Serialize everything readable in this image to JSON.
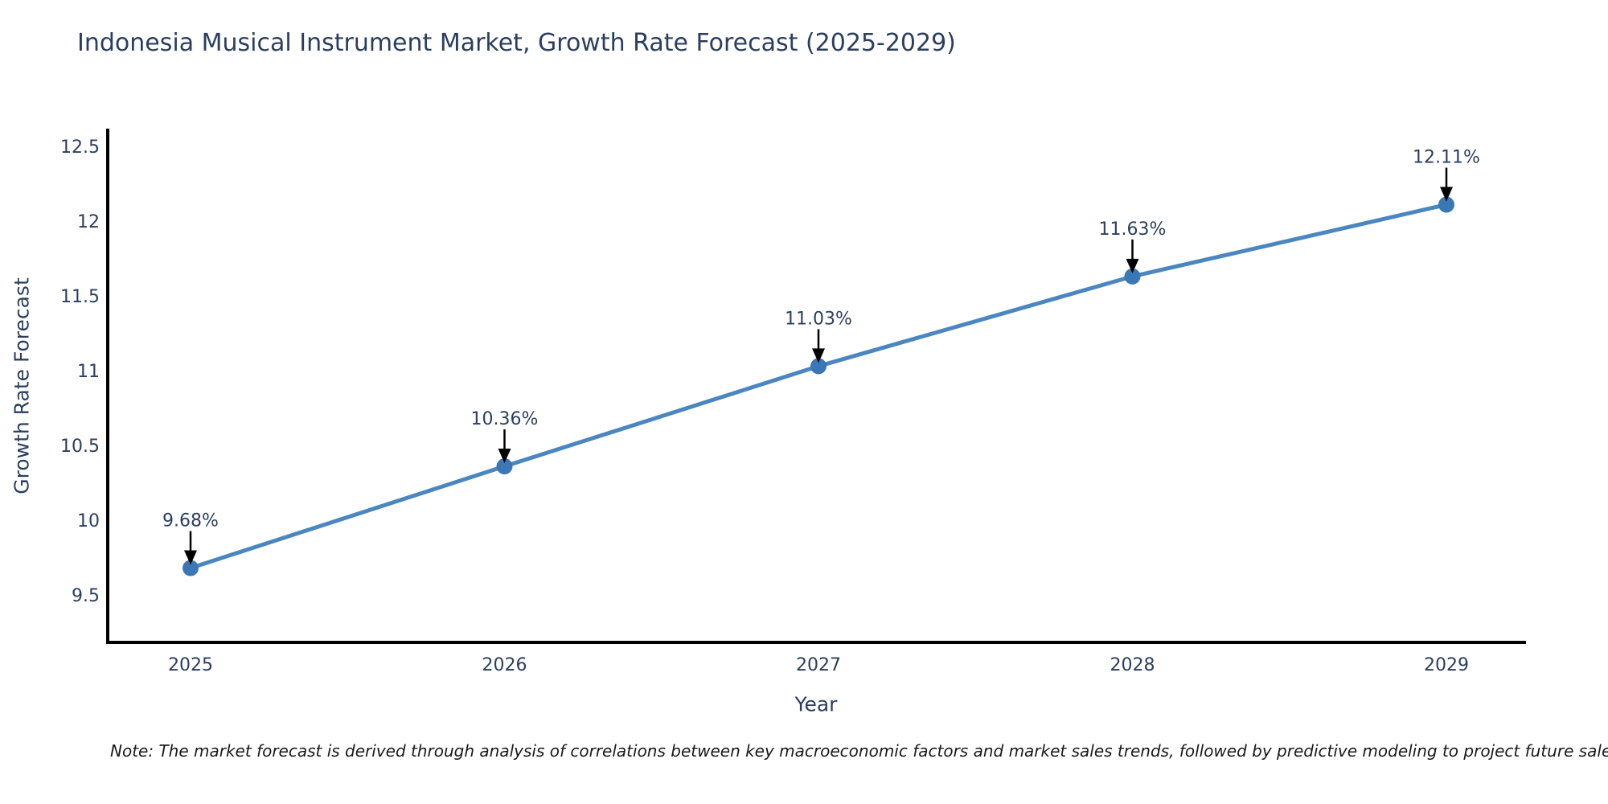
{
  "chart_data": {
    "type": "line",
    "title": "Indonesia Musical Instrument Market, Growth Rate Forecast (2025-2029)",
    "xlabel": "Year",
    "ylabel": "Growth Rate Forecast",
    "categories": [
      "2025",
      "2026",
      "2027",
      "2028",
      "2029"
    ],
    "series": [
      {
        "name": "Growth Rate Forecast",
        "values": [
          9.68,
          10.36,
          11.03,
          11.63,
          12.11
        ]
      }
    ],
    "point_labels": [
      "9.68%",
      "10.36%",
      "11.03%",
      "11.63%",
      "12.11%"
    ],
    "yticks": [
      "9.5",
      "10",
      "10.5",
      "11",
      "11.5",
      "12",
      "12.5"
    ],
    "ylim": [
      9.2,
      12.72
    ],
    "grid": false,
    "legend": "none",
    "annotation_style": "label-with-down-arrow-to-point",
    "note": "Note: The market forecast is derived through analysis of correlations between key macroeconomic factors and market sales trends, followed by predictive modeling to project future sales",
    "colors": {
      "line": "#4a86c0",
      "marker": "#3a77b4",
      "axis": "#000000",
      "text": "#2a3f5f",
      "annotation_text": "#2a3f5f",
      "arrow": "#000000",
      "note_text": "#1a1a1a",
      "background": "#ffffff"
    }
  }
}
